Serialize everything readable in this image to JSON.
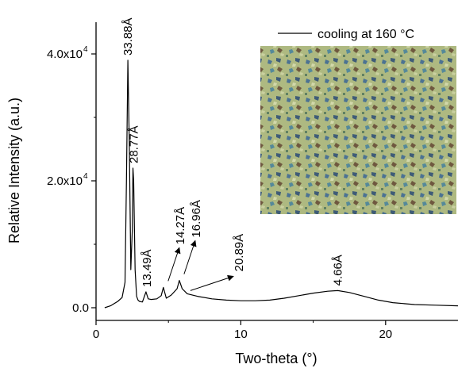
{
  "chart_data": {
    "type": "line",
    "title": "",
    "xlabel": "Two-theta (°)",
    "ylabel": "Relative Intensity (a.u.)",
    "xlim": [
      0,
      25
    ],
    "ylim": [
      -2000,
      45000
    ],
    "x_ticks": [
      {
        "value": 0,
        "label": "0"
      },
      {
        "value": 10,
        "label": "10"
      },
      {
        "value": 20,
        "label": "20"
      }
    ],
    "y_ticks": [
      {
        "value": 0,
        "label": "0.0"
      },
      {
        "value": 20000,
        "label": "2.0x10",
        "exp": "4"
      },
      {
        "value": 40000,
        "label": "4.0x10",
        "exp": "4"
      }
    ],
    "legend": {
      "position": "top-right",
      "entry": "cooling at 160 °C"
    },
    "inset": {
      "kind": "polarized optical micrograph",
      "position": "upper-right"
    },
    "series": [
      {
        "name": "cooling at 160 °C",
        "color": "#000000",
        "x": [
          0.6,
          1.0,
          1.5,
          1.8,
          2.0,
          2.1,
          2.2,
          2.3,
          2.4,
          2.5,
          2.55,
          2.6,
          2.7,
          2.8,
          2.9,
          3.0,
          3.2,
          3.45,
          3.6,
          3.8,
          4.2,
          4.5,
          4.65,
          4.85,
          5.2,
          5.6,
          5.75,
          5.95,
          6.3,
          7.0,
          8.0,
          9.0,
          10.0,
          11.0,
          12.0,
          13.0,
          14.0,
          15.0,
          16.0,
          16.7,
          17.5,
          18.5,
          19.5,
          20.5,
          22.0,
          23.5,
          25.0
        ],
        "y": [
          0,
          300,
          1000,
          1600,
          4000,
          20000,
          39000,
          25000,
          6000,
          12000,
          22000,
          20000,
          6000,
          1800,
          1200,
          1000,
          900,
          2500,
          1400,
          1300,
          1400,
          1900,
          3200,
          1500,
          2000,
          3000,
          4300,
          3000,
          2200,
          1800,
          1400,
          1200,
          1100,
          1100,
          1200,
          1500,
          1900,
          2300,
          2600,
          2700,
          2400,
          1800,
          1200,
          800,
          500,
          400,
          300
        ]
      }
    ],
    "annotations": [
      {
        "text": "33.88Å",
        "x": 2.2,
        "y": 39000,
        "arrow": false
      },
      {
        "text": "28.77Å",
        "x": 2.6,
        "y": 22000,
        "arrow": false
      },
      {
        "text": "13.49Å",
        "x": 3.5,
        "y": 2500,
        "arrow": false
      },
      {
        "text": "14.27Å",
        "x": 4.65,
        "y": 3200,
        "arrow": true
      },
      {
        "text": "16.96Å",
        "x": 5.75,
        "y": 4300,
        "arrow": true
      },
      {
        "text": "20.89Å",
        "x": 6.3,
        "y": 2200,
        "arrow": true
      },
      {
        "text": "4.66Å",
        "x": 16.7,
        "y": 2700,
        "arrow": false
      }
    ]
  }
}
